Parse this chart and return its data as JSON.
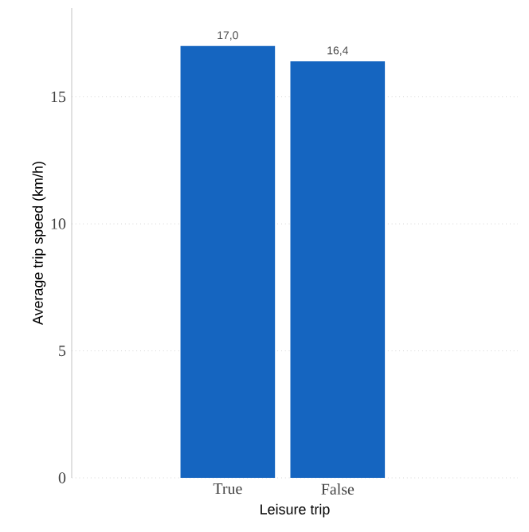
{
  "chart_data": {
    "type": "bar",
    "xlabel": "Leisure trip",
    "ylabel": "Average trip speed (km/h)",
    "categories": [
      "True",
      "False"
    ],
    "values": [
      17.0,
      16.4
    ],
    "value_labels": [
      "17,0",
      "16,4"
    ],
    "color": "#1565c0",
    "ylim": [
      0,
      18.5
    ],
    "yticks": [
      0,
      5,
      10,
      15
    ],
    "grid": "y"
  }
}
